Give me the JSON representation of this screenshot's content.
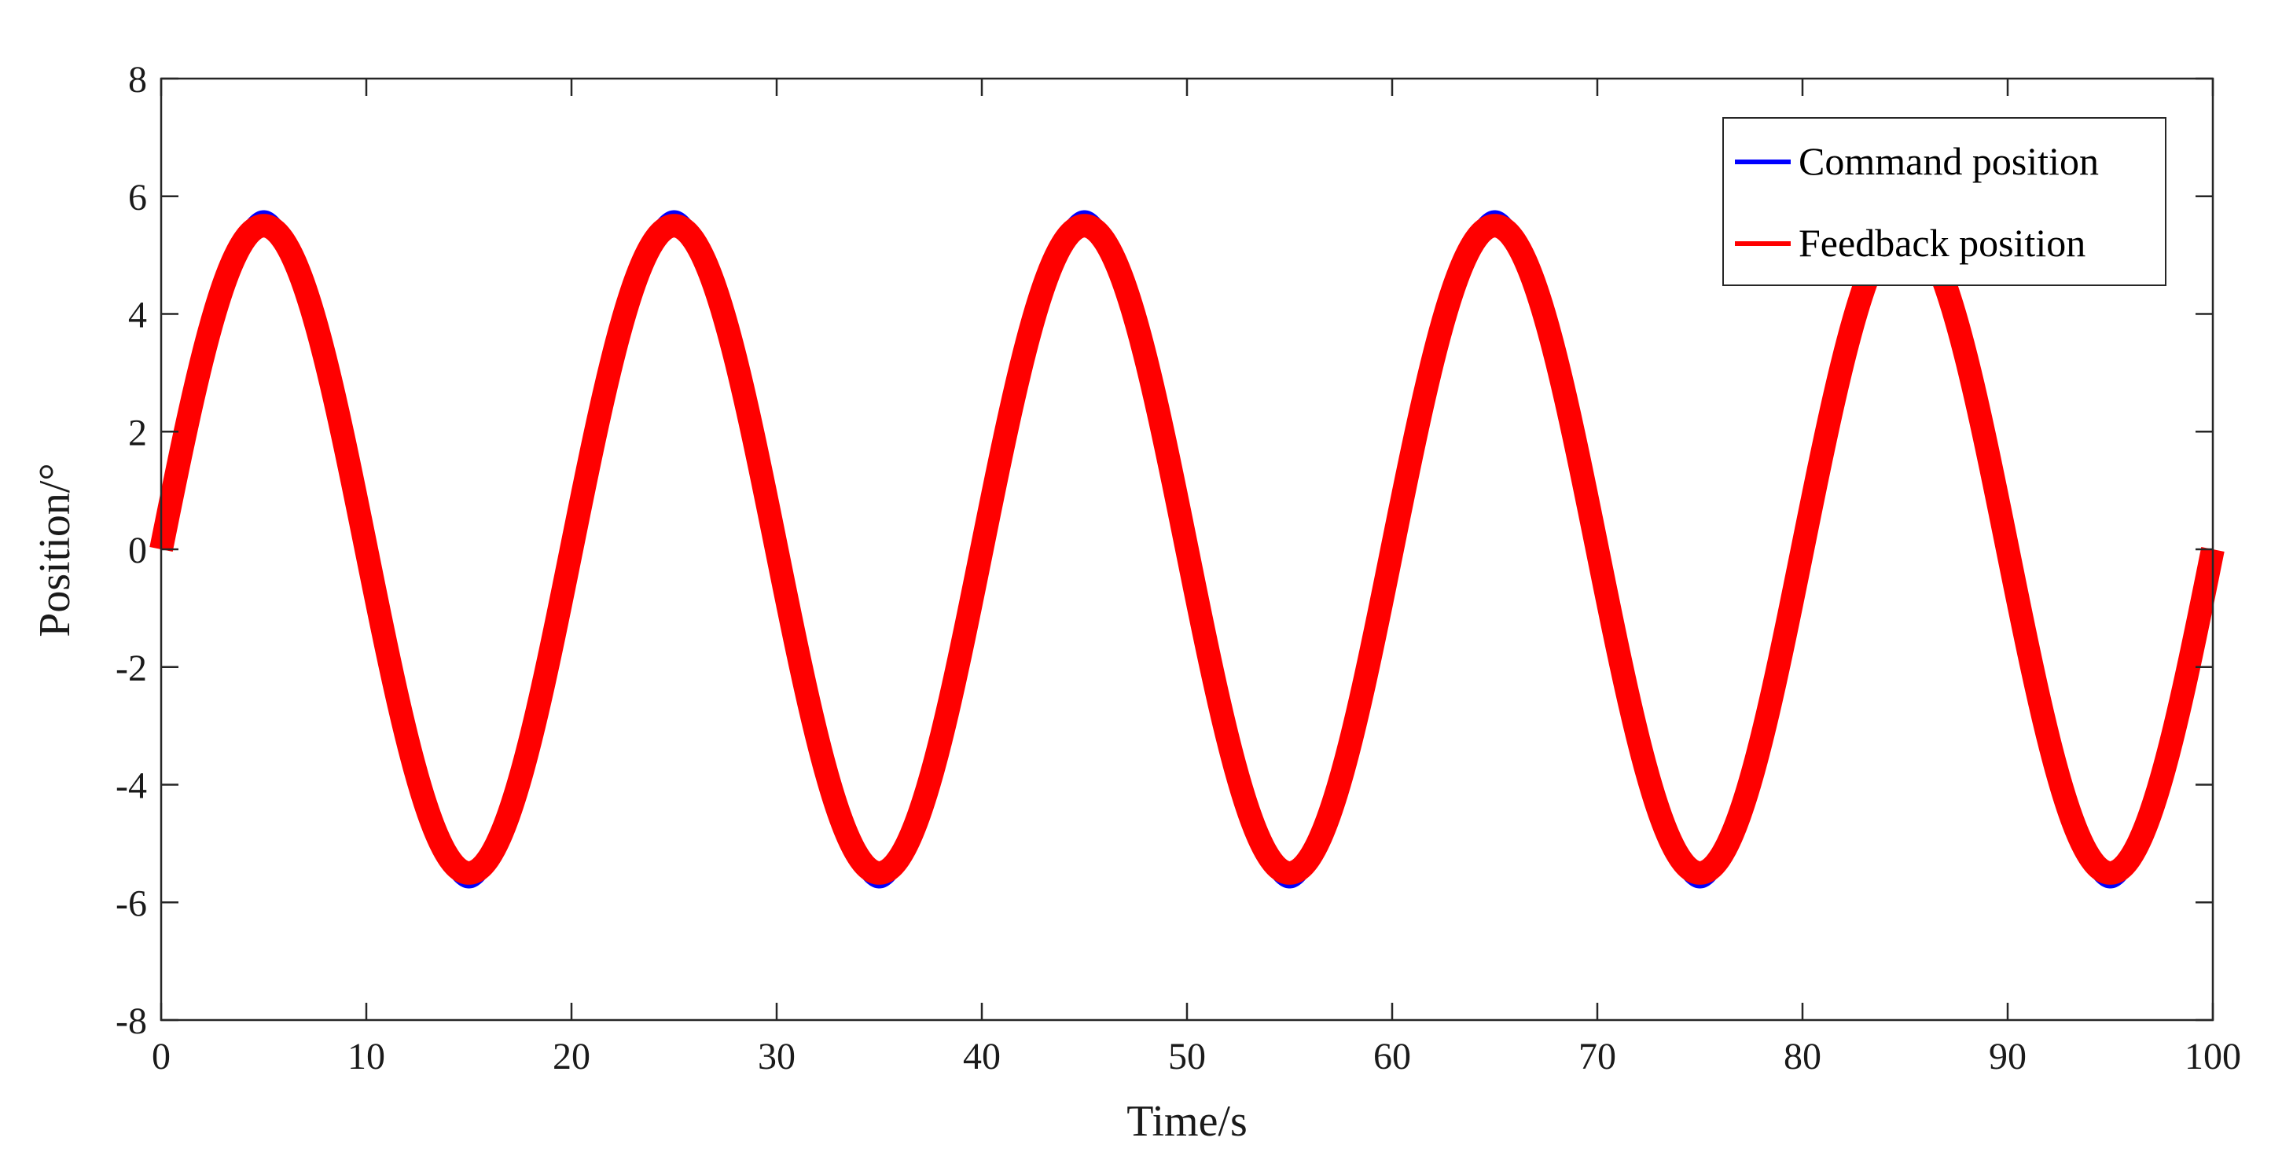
{
  "chart_data": {
    "type": "line",
    "title": "",
    "xlabel": "Time/s",
    "ylabel": "Position/°",
    "xlim": [
      0,
      100
    ],
    "ylim": [
      -8,
      8
    ],
    "xticks": [
      0,
      10,
      20,
      30,
      40,
      50,
      60,
      70,
      80,
      90,
      100
    ],
    "yticks": [
      -8,
      -6,
      -4,
      -2,
      0,
      2,
      4,
      6,
      8
    ],
    "grid": false,
    "legend_position": "top-right",
    "series": [
      {
        "name": "Command position",
        "color": "#0000ff",
        "function": "sine",
        "amplitude": 5.73,
        "period": 20,
        "x_range": [
          0,
          100
        ]
      },
      {
        "name": "Feedback position",
        "color": "#ff0000",
        "function": "sine",
        "amplitude": 5.5,
        "period": 20,
        "x_range": [
          0,
          100
        ],
        "noise_band": 0.2
      }
    ]
  }
}
